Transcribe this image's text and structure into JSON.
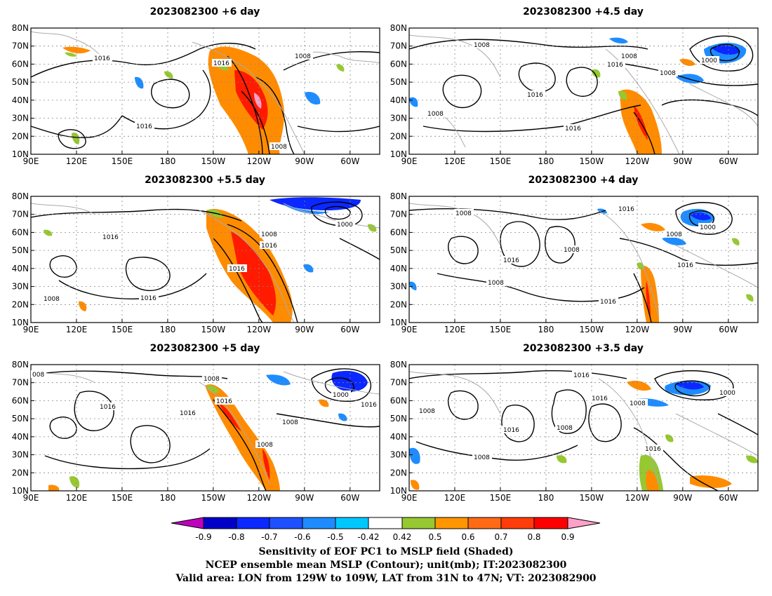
{
  "panels": [
    {
      "title": "2023082300 +6 day",
      "contour_labels": [
        "1016",
        "1016",
        "1008",
        "1016",
        "1008"
      ]
    },
    {
      "title": "2023082300 +4.5 day",
      "contour_labels": [
        "1008",
        "1016",
        "1008",
        "1000",
        "1008",
        "1016",
        "1016",
        "1008"
      ]
    },
    {
      "title": "2023082300 +5.5 day",
      "contour_labels": [
        "1016",
        "1008",
        "1016",
        "1016",
        "1008",
        "1000",
        "1016"
      ]
    },
    {
      "title": "2023082300 +4 day",
      "contour_labels": [
        "1008",
        "1016",
        "1008",
        "1000",
        "1008",
        "1016",
        "1008",
        "1016",
        "1016"
      ]
    },
    {
      "title": "2023082300 +5 day",
      "contour_labels": [
        "008",
        "1008",
        "1016",
        "1016",
        "1016",
        "1008",
        "1000",
        "1016",
        "1008"
      ]
    },
    {
      "title": "2023082300 +3.5 day",
      "contour_labels": [
        "1016",
        "1016",
        "1008",
        "1000",
        "1008",
        "1016",
        "1008",
        "1008",
        "1016"
      ]
    }
  ],
  "axes": {
    "lon_ticks": [
      "90E",
      "120E",
      "150E",
      "180",
      "150W",
      "120W",
      "90W",
      "60W"
    ],
    "lat_ticks": [
      "80N",
      "70N",
      "60N",
      "50N",
      "40N",
      "30N",
      "20N",
      "10N"
    ]
  },
  "colorbar": {
    "colors": [
      "#c000c0",
      "#0000c8",
      "#0a28ff",
      "#1e50ff",
      "#1e8cff",
      "#00c8ff",
      "#ffffff",
      "#96c832",
      "#ff9600",
      "#ff6a14",
      "#ff3c0a",
      "#ff0000",
      "#ffa0c8"
    ],
    "labels": [
      "-0.9",
      "-0.8",
      "-0.7",
      "-0.6",
      "-0.5",
      "-0.42",
      "0.42",
      "0.5",
      "0.6",
      "0.7",
      "0.8",
      "0.9"
    ]
  },
  "footer": [
    "Sensitivity of EOF PC1 to MSLP field (Shaded)",
    "NCEP ensemble mean MSLP (Contour); unit(mb); IT:2023082300",
    "Valid area: LON from 129W to 109W, LAT from 31N to 47N; VT: 2023082900"
  ],
  "colors": {
    "contour": "#000000",
    "coast": "#aaaaaa",
    "grid": "#888888",
    "orange": "#ff8c00",
    "red": "#ff1a00",
    "green": "#96c832",
    "blue": "#1e8cff",
    "darkblue": "#1020ff",
    "pink": "#ffa0c8"
  }
}
